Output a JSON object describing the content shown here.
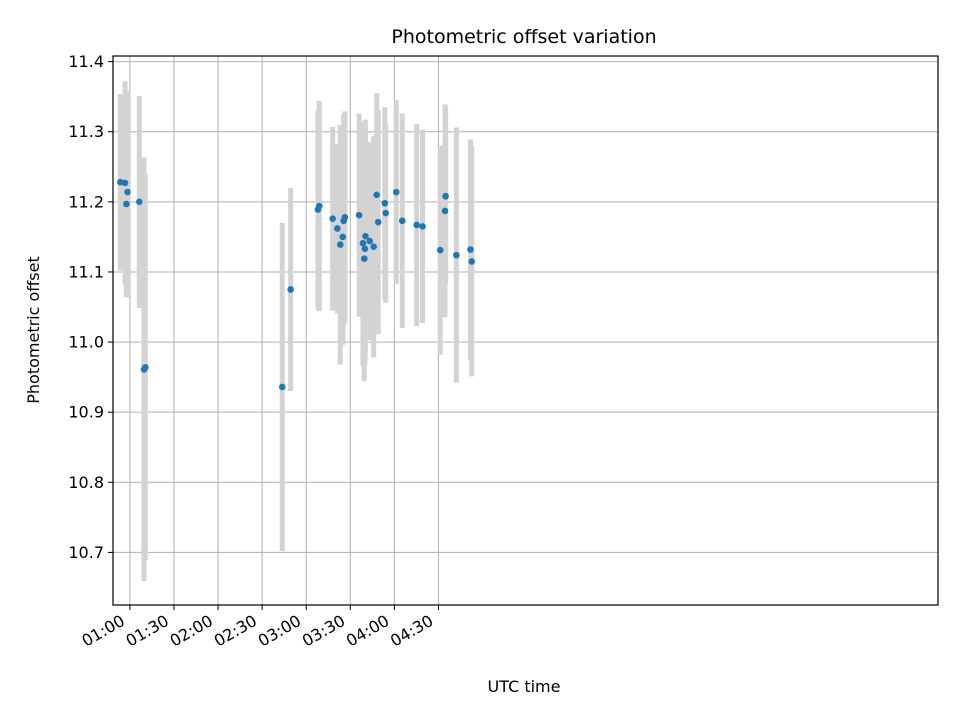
{
  "chart_data": {
    "type": "scatter",
    "title": "Photometric offset variation",
    "xlabel": "UTC time",
    "ylabel": "Photometric offset",
    "xlim_minutes": [
      48.5,
      610
    ],
    "ylim": [
      10.625,
      11.408
    ],
    "x_ticks": [
      {
        "label": "01:00",
        "minutes": 60
      },
      {
        "label": "01:30",
        "minutes": 90
      },
      {
        "label": "02:00",
        "minutes": 120
      },
      {
        "label": "02:30",
        "minutes": 150
      },
      {
        "label": "03:00",
        "minutes": 180
      },
      {
        "label": "03:30",
        "minutes": 210
      },
      {
        "label": "04:00",
        "minutes": 240
      },
      {
        "label": "04:30",
        "minutes": 270
      }
    ],
    "y_ticks": [
      10.7,
      10.8,
      10.9,
      11.0,
      11.1,
      11.2,
      11.3,
      11.4
    ],
    "y_tick_labels": [
      "10.7",
      "10.8",
      "10.9",
      "11.0",
      "11.1",
      "11.2",
      "11.3",
      "11.4"
    ],
    "grid": true,
    "time_unit": "minutes after 00:00 UTC",
    "series": [
      {
        "name": "photometric offset",
        "color": "#1f77b4",
        "errorbar_color": "#d3d3d3",
        "points": [
          {
            "t": 53.5,
            "y": 11.228,
            "err": 0.126
          },
          {
            "t": 56.7,
            "y": 11.227,
            "err": 0.145
          },
          {
            "t": 57.6,
            "y": 11.197,
            "err": 0.133
          },
          {
            "t": 58.4,
            "y": 11.214,
            "err": 0.144
          },
          {
            "t": 66.4,
            "y": 11.2,
            "err": 0.151
          },
          {
            "t": 69.6,
            "y": 10.961,
            "err": 0.302
          },
          {
            "t": 70.5,
            "y": 10.964,
            "err": 0.275
          },
          {
            "t": 163.7,
            "y": 10.936,
            "err": 0.234
          },
          {
            "t": 169.4,
            "y": 11.075,
            "err": 0.145
          },
          {
            "t": 188.0,
            "y": 11.189,
            "err": 0.142
          },
          {
            "t": 188.9,
            "y": 11.194,
            "err": 0.15
          },
          {
            "t": 198.0,
            "y": 11.176,
            "err": 0.131
          },
          {
            "t": 201.2,
            "y": 11.162,
            "err": 0.121
          },
          {
            "t": 203.2,
            "y": 11.139,
            "err": 0.171
          },
          {
            "t": 204.9,
            "y": 11.15,
            "err": 0.154
          },
          {
            "t": 205.5,
            "y": 11.173,
            "err": 0.151
          },
          {
            "t": 206.3,
            "y": 11.178,
            "err": 0.151
          },
          {
            "t": 216.0,
            "y": 11.181,
            "err": 0.145
          },
          {
            "t": 218.6,
            "y": 11.141,
            "err": 0.174
          },
          {
            "t": 219.5,
            "y": 11.119,
            "err": 0.175
          },
          {
            "t": 220.0,
            "y": 11.133,
            "err": 0.165
          },
          {
            "t": 220.3,
            "y": 11.151,
            "err": 0.166
          },
          {
            "t": 223.2,
            "y": 11.144,
            "err": 0.141
          },
          {
            "t": 225.9,
            "y": 11.136,
            "err": 0.158
          },
          {
            "t": 228.0,
            "y": 11.21,
            "err": 0.145
          },
          {
            "t": 229.0,
            "y": 11.171,
            "err": 0.16
          },
          {
            "t": 233.5,
            "y": 11.198,
            "err": 0.137
          },
          {
            "t": 234.1,
            "y": 11.184,
            "err": 0.128
          },
          {
            "t": 241.3,
            "y": 11.214,
            "err": 0.131
          },
          {
            "t": 245.4,
            "y": 11.173,
            "err": 0.153
          },
          {
            "t": 255.2,
            "y": 11.167,
            "err": 0.144
          },
          {
            "t": 259.2,
            "y": 11.165,
            "err": 0.138
          },
          {
            "t": 271.2,
            "y": 11.131,
            "err": 0.149
          },
          {
            "t": 274.5,
            "y": 11.187,
            "err": 0.152
          },
          {
            "t": 274.9,
            "y": 11.208,
            "err": 0.125
          },
          {
            "t": 282.2,
            "y": 11.124,
            "err": 0.182
          },
          {
            "t": 291.8,
            "y": 11.132,
            "err": 0.157
          },
          {
            "t": 292.7,
            "y": 11.115,
            "err": 0.164
          }
        ]
      }
    ]
  }
}
